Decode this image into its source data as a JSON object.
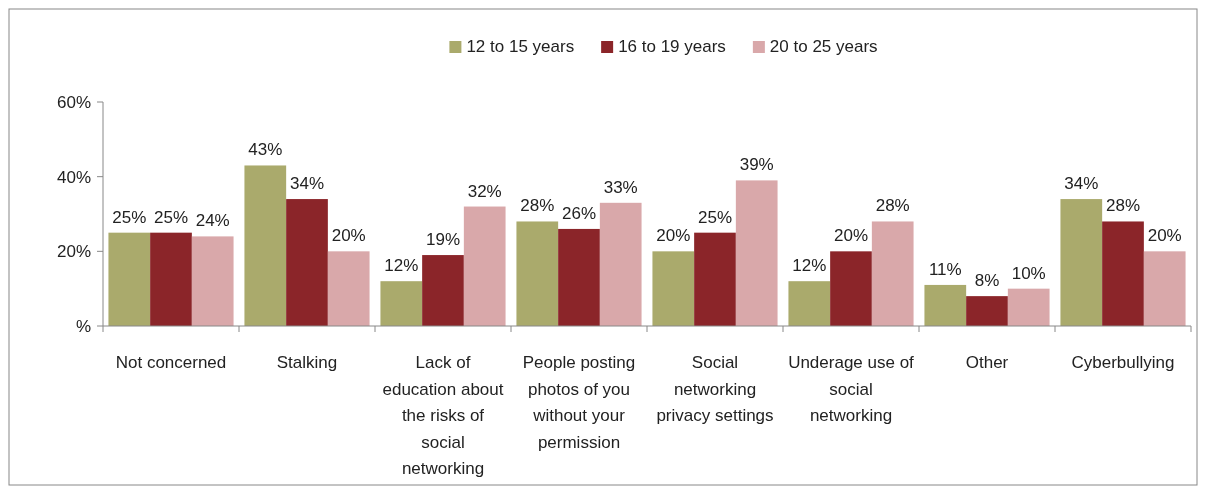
{
  "chart_data": {
    "type": "bar",
    "categories": [
      "Not concerned",
      "Stalking",
      "Lack of education about the risks of social networking",
      "People posting photos of you without your permission",
      "Social networking privacy settings",
      "Underage use of social networking",
      "Other",
      "Cyberbullying"
    ],
    "series": [
      {
        "name": "12 to 15 years",
        "color": "#aaaa6c",
        "values": [
          25,
          43,
          12,
          28,
          20,
          12,
          11,
          34
        ],
        "value_labels": [
          "25%",
          "43%",
          "12%",
          "28%",
          "20%",
          "12%",
          "11%",
          "34%"
        ]
      },
      {
        "name": "16 to 19 years",
        "color": "#8b2529",
        "values": [
          25,
          34,
          19,
          26,
          25,
          20,
          8,
          28
        ],
        "value_labels": [
          "25%",
          "34%",
          "19%",
          "26%",
          "25%",
          "20%",
          "8%",
          "28%"
        ]
      },
      {
        "name": "20 to 25 years",
        "color": "#d9a8aa",
        "values": [
          24,
          20,
          32,
          33,
          39,
          28,
          10,
          20
        ],
        "value_labels": [
          "24%",
          "20%",
          "32%",
          "33%",
          "39%",
          "28%",
          "10%",
          "20%"
        ]
      }
    ],
    "ylim": [
      0,
      60
    ],
    "yticks": [
      {
        "value": 0,
        "label": "%"
      },
      {
        "value": 20,
        "label": "20%"
      },
      {
        "value": 40,
        "label": "40%"
      },
      {
        "value": 60,
        "label": "60%"
      }
    ],
    "grid": false,
    "legend": "top"
  }
}
